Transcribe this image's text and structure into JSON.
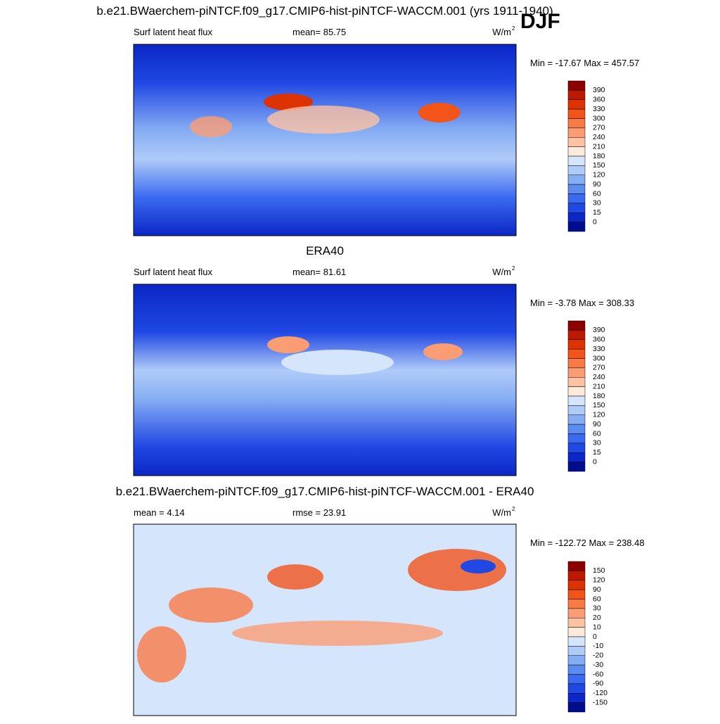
{
  "season": "DJF",
  "panels": [
    {
      "title": "b.e21.BWaerchem-piNTCF.f09_g17.CMIP6-hist-piNTCF-WACCM.001 (yrs 1911-1940)",
      "left_label": "Surf latent heat flux",
      "center_label": "mean=  85.75",
      "units": {
        "base": "W/m",
        "sup": "2"
      },
      "min_max": "Min = -17.67 Max = 457.57",
      "colorbar": {
        "labels": [
          390,
          360,
          330,
          300,
          270,
          240,
          210,
          180,
          150,
          120,
          90,
          60,
          30,
          15,
          0
        ],
        "colors": [
          "#8c0000",
          "#bb1a00",
          "#dd3300",
          "#f2541a",
          "#f87a46",
          "#fb9d74",
          "#fdc2a4",
          "#feeadb",
          "#d5e5fc",
          "#afcbf8",
          "#86adf3",
          "#5b8cef",
          "#3b6af0",
          "#2048e3",
          "#0b27c6",
          "#000d8f"
        ]
      }
    },
    {
      "title": "ERA40",
      "left_label": "Surf latent heat flux",
      "center_label": "mean=  81.61",
      "units": {
        "base": "W/m",
        "sup": "2"
      },
      "min_max": "Min =  -3.78 Max = 308.33",
      "colorbar": {
        "labels": [
          390,
          360,
          330,
          300,
          270,
          240,
          210,
          180,
          150,
          120,
          90,
          60,
          30,
          15,
          0
        ],
        "colors": [
          "#8c0000",
          "#bb1a00",
          "#dd3300",
          "#f2541a",
          "#f87a46",
          "#fb9d74",
          "#fdc2a4",
          "#feeadb",
          "#d5e5fc",
          "#afcbf8",
          "#86adf3",
          "#5b8cef",
          "#3b6af0",
          "#2048e3",
          "#0b27c6",
          "#000d8f"
        ]
      }
    },
    {
      "title": "b.e21.BWaerchem-piNTCF.f09_g17.CMIP6-hist-piNTCF-WACCM.001 - ERA40",
      "left_label": "mean =   4.14",
      "center_label": "rmse =  23.91",
      "units": {
        "base": "W/m",
        "sup": "2"
      },
      "min_max": "Min = -122.72 Max = 238.48",
      "colorbar": {
        "labels": [
          150,
          120,
          90,
          60,
          30,
          20,
          10,
          0,
          -10,
          -20,
          -30,
          -60,
          -90,
          -120,
          -150
        ],
        "colors": [
          "#8c0000",
          "#bb1a00",
          "#dd3300",
          "#f2541a",
          "#f87a46",
          "#fb9d74",
          "#fdc2a4",
          "#feeadb",
          "#d5e5fc",
          "#afcbf8",
          "#86adf3",
          "#5b8cef",
          "#3b6af0",
          "#2048e3",
          "#0b27c6",
          "#000d8f"
        ]
      }
    }
  ]
}
